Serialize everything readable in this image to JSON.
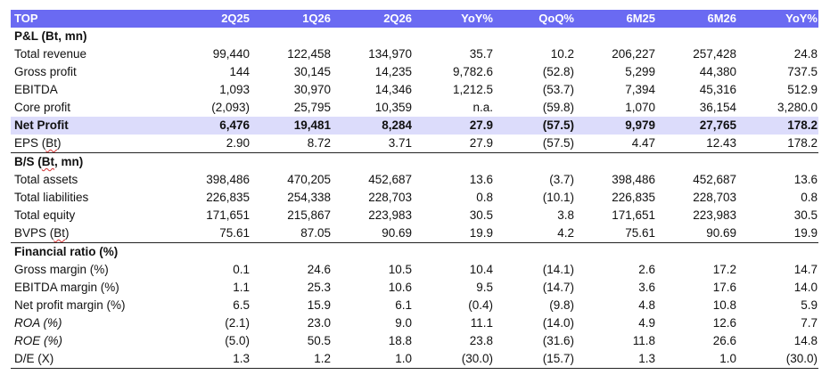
{
  "header": {
    "label": "TOP",
    "columns": [
      "2Q25",
      "1Q26",
      "2Q26",
      "YoY%",
      "QoQ%",
      "6M25",
      "6M26",
      "YoY%"
    ]
  },
  "sections": [
    {
      "title_pre": "P&L (",
      "title_squiggle": "",
      "title_post": "Bt, mn)",
      "rows": [
        {
          "label": "Total revenue",
          "values": [
            "99,440",
            "122,458",
            "134,970",
            "35.7",
            "10.2",
            "206,227",
            "257,428",
            "24.8"
          ]
        },
        {
          "label": "Gross profit",
          "values": [
            "144",
            "30,145",
            "14,235",
            "9,782.6",
            "(52.8)",
            "5,299",
            "44,380",
            "737.5"
          ]
        },
        {
          "label": "EBITDA",
          "values": [
            "1,093",
            "30,970",
            "14,346",
            "1,212.5",
            "(53.7)",
            "7,394",
            "45,316",
            "512.9"
          ]
        },
        {
          "label": "Core profit",
          "values": [
            "(2,093)",
            "25,795",
            "10,359",
            "n.a.",
            "(59.8)",
            "1,070",
            "36,154",
            "3,280.0"
          ]
        },
        {
          "label": "Net Profit",
          "highlight": true,
          "values": [
            "6,476",
            "19,481",
            "8,284",
            "27.9",
            "(57.5)",
            "9,979",
            "27,765",
            "178.2"
          ]
        },
        {
          "label_pre": "EPS (",
          "label_squiggle": "Bt",
          "label_post": ")",
          "values": [
            "2.90",
            "8.72",
            "3.71",
            "27.9",
            "(57.5)",
            "4.47",
            "12.43",
            "178.2"
          ]
        }
      ]
    },
    {
      "title_pre": "B/S (",
      "title_squiggle": "Bt",
      "title_post": ", mn)",
      "rows": [
        {
          "label": "Total assets",
          "values": [
            "398,486",
            "470,205",
            "452,687",
            "13.6",
            "(3.7)",
            "398,486",
            "452,687",
            "13.6"
          ]
        },
        {
          "label": "Total liabilities",
          "values": [
            "226,835",
            "254,338",
            "228,703",
            "0.8",
            "(10.1)",
            "226,835",
            "228,703",
            "0.8"
          ]
        },
        {
          "label": "Total equity",
          "values": [
            "171,651",
            "215,867",
            "223,983",
            "30.5",
            "3.8",
            "171,651",
            "223,983",
            "30.5"
          ]
        },
        {
          "label_pre": "BVPS (",
          "label_squiggle": "Bt",
          "label_post": ")",
          "values": [
            "75.61",
            "87.05",
            "90.69",
            "19.9",
            "4.2",
            "75.61",
            "90.69",
            "19.9"
          ]
        }
      ]
    },
    {
      "title_pre": "Financial ratio (%)",
      "title_squiggle": "",
      "title_post": "",
      "rows": [
        {
          "label": "Gross margin (%)",
          "values": [
            "0.1",
            "24.6",
            "10.5",
            "10.4",
            "(14.1)",
            "2.6",
            "17.2",
            "14.7"
          ]
        },
        {
          "label": "EBITDA margin (%)",
          "values": [
            "1.1",
            "25.3",
            "10.6",
            "9.5",
            "(14.7)",
            "3.6",
            "17.6",
            "14.0"
          ]
        },
        {
          "label": "Net profit margin (%)",
          "values": [
            "6.5",
            "15.9",
            "6.1",
            "(0.4)",
            "(9.8)",
            "4.8",
            "10.8",
            "5.9"
          ]
        },
        {
          "label": "ROA (%)",
          "italic": true,
          "values": [
            "(2.1)",
            "23.0",
            "9.0",
            "11.1",
            "(14.0)",
            "4.9",
            "12.6",
            "7.7"
          ]
        },
        {
          "label": "ROE (%)",
          "italic": true,
          "values": [
            "(5.0)",
            "50.5",
            "18.8",
            "23.8",
            "(31.6)",
            "11.8",
            "26.6",
            "14.8"
          ]
        },
        {
          "label": "D/E (X)",
          "values": [
            "1.3",
            "1.2",
            "1.0",
            "(30.0)",
            "(15.7)",
            "1.3",
            "1.0",
            "(30.0)"
          ]
        }
      ]
    }
  ]
}
